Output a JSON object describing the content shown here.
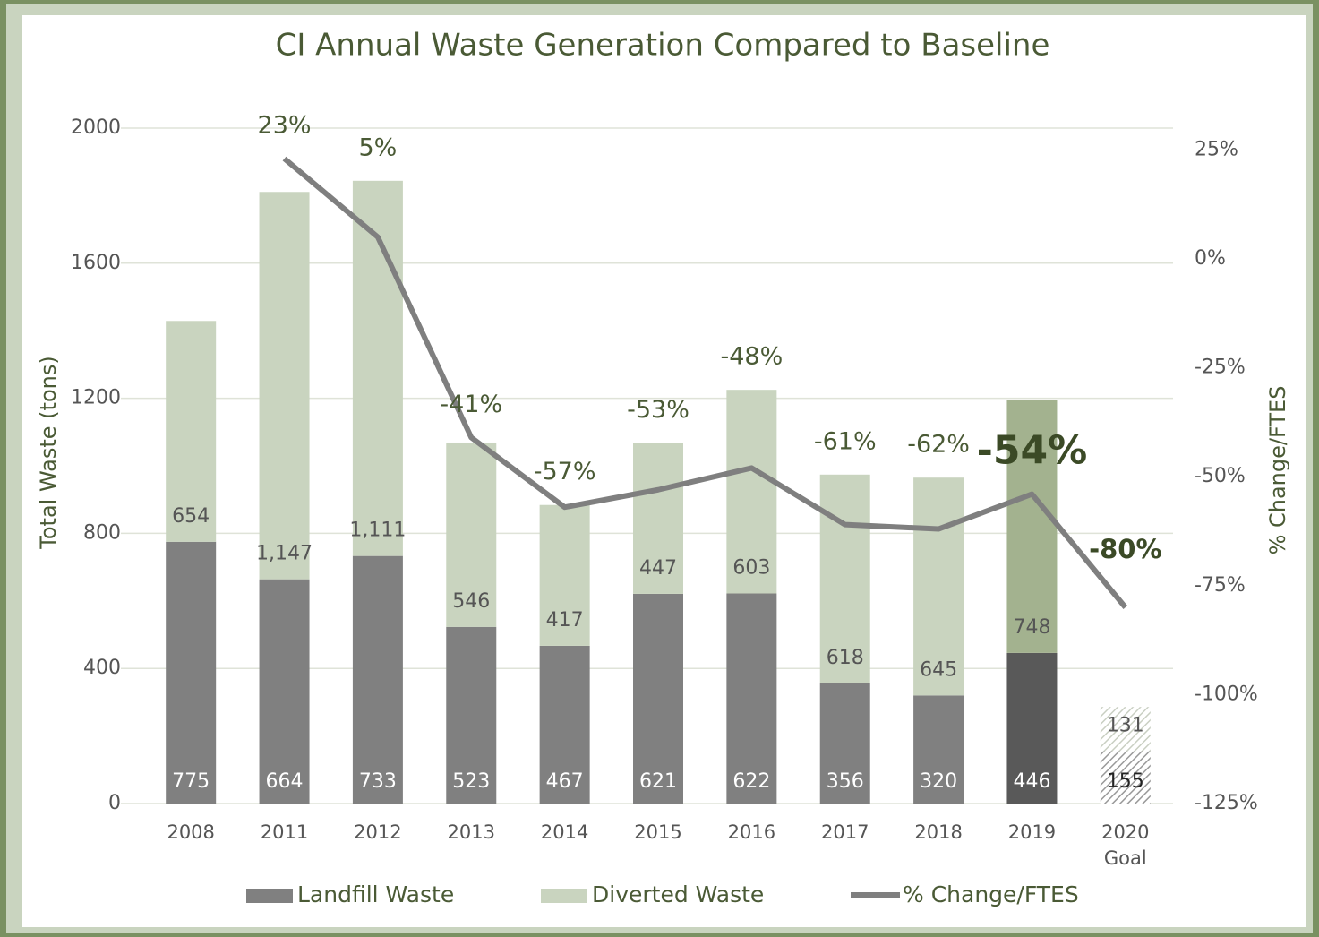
{
  "chart_data": {
    "type": "bar",
    "title": "CI Annual Waste Generation Compared to Baseline",
    "y_label": "Total Waste (tons)",
    "y2_label": "% Change/FTES",
    "categories": [
      "2008",
      "2011",
      "2012",
      "2013",
      "2014",
      "2015",
      "2016",
      "2017",
      "2018",
      "2019",
      "2020 Goal"
    ],
    "stacked": true,
    "ylim": [
      0,
      2000
    ],
    "yticks": [
      0,
      400,
      800,
      1200,
      1600,
      2000
    ],
    "y2lim": [
      -125,
      30
    ],
    "y2ticks": [
      {
        "value": -125,
        "label": "-125%"
      },
      {
        "value": -100,
        "label": "-100%"
      },
      {
        "value": -75,
        "label": "-75%"
      },
      {
        "value": -50,
        "label": "-50%"
      },
      {
        "value": -25,
        "label": "-25%"
      },
      {
        "value": 0,
        "label": "0%"
      },
      {
        "value": 25,
        "label": "25%"
      }
    ],
    "grid": true,
    "series": [
      {
        "name": "Landfill Waste",
        "type": "bar",
        "color": "#808080",
        "colors": [
          "#808080",
          "#808080",
          "#808080",
          "#808080",
          "#808080",
          "#808080",
          "#808080",
          "#808080",
          "#808080",
          "#595959",
          "#8c8c8c"
        ],
        "hatched": [
          false,
          false,
          false,
          false,
          false,
          false,
          false,
          false,
          false,
          false,
          true
        ],
        "values": [
          775,
          664,
          733,
          523,
          467,
          621,
          622,
          356,
          320,
          446,
          155
        ]
      },
      {
        "name": "Diverted Waste",
        "type": "bar",
        "color": "#c9d4bf",
        "colors": [
          "#c9d4bf",
          "#c9d4bf",
          "#c9d4bf",
          "#c9d4bf",
          "#c9d4bf",
          "#c9d4bf",
          "#c9d4bf",
          "#c9d4bf",
          "#c9d4bf",
          "#a3b28f",
          "#c9d4bf"
        ],
        "hatched": [
          false,
          false,
          false,
          false,
          false,
          false,
          false,
          false,
          false,
          false,
          true
        ],
        "values": [
          654,
          1147,
          1111,
          546,
          417,
          447,
          603,
          618,
          645,
          748,
          131
        ],
        "value_labels": [
          "654",
          "1,147",
          "1,111",
          "546",
          "417",
          "447",
          "603",
          "618",
          "645",
          "748",
          "131"
        ]
      },
      {
        "name": "% Change/FTES",
        "type": "line",
        "axis": "y2",
        "color": "#7f7f7f",
        "values": [
          null,
          23,
          5,
          -41,
          -57,
          -53,
          -48,
          -61,
          -62,
          -54,
          -80
        ],
        "value_labels": [
          null,
          "23%",
          "5%",
          "-41%",
          "-57%",
          "-53%",
          "-48%",
          "-61%",
          "-62%",
          "-54%",
          "-80%"
        ]
      }
    ]
  }
}
